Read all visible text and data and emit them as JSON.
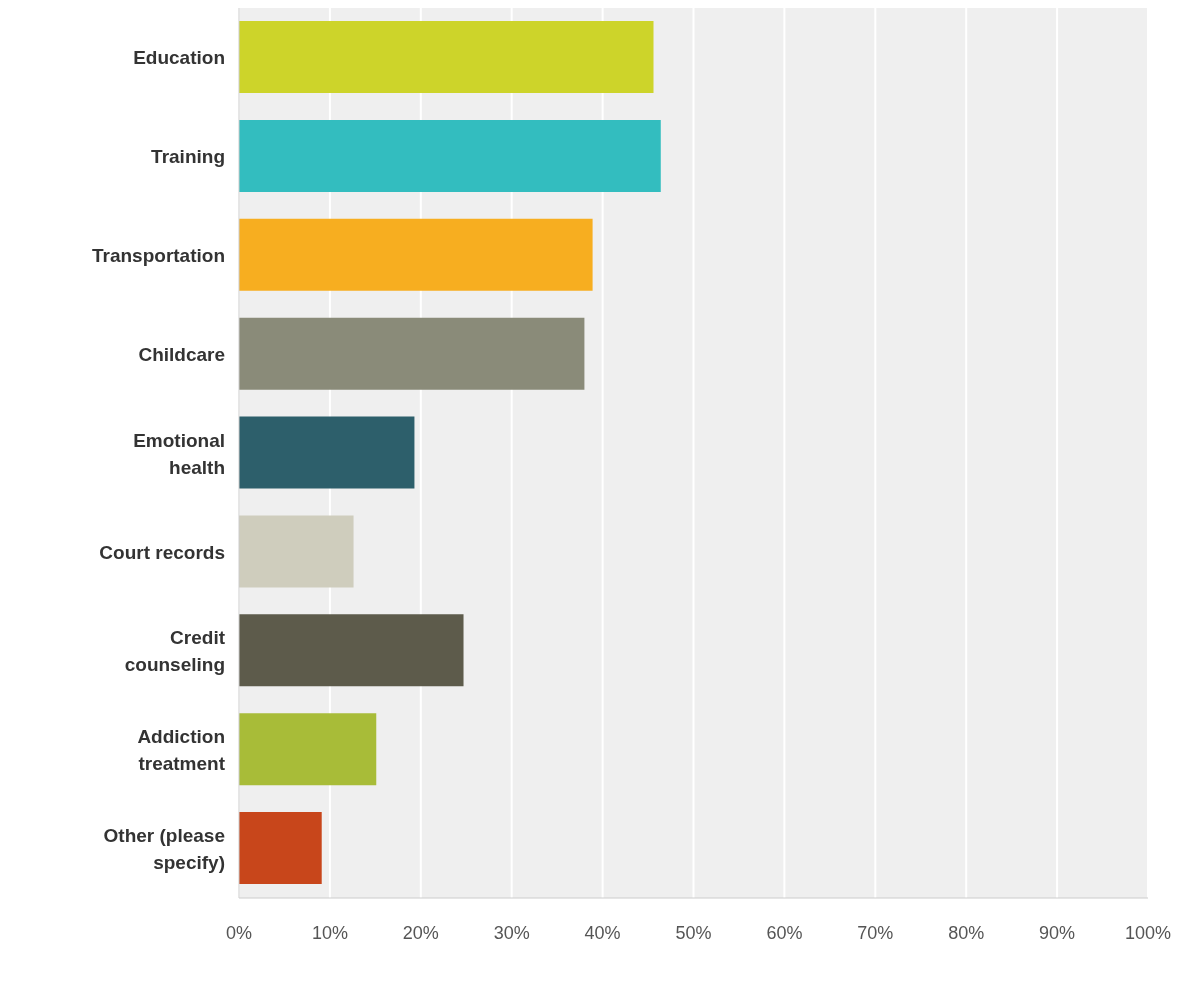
{
  "chart_data": {
    "type": "bar",
    "orientation": "horizontal",
    "categories": [
      "Education",
      "Training",
      "Transportation",
      "Childcare",
      "Emotional health",
      "Court records",
      "Credit counseling",
      "Addiction treatment",
      "Other (please specify)"
    ],
    "values": [
      45.6,
      46.4,
      38.9,
      38.0,
      19.3,
      12.6,
      24.7,
      15.1,
      9.1
    ],
    "colors": [
      "#cdd42a",
      "#33bdbf",
      "#f7ae20",
      "#8a8b79",
      "#2d5f6b",
      "#cfcdbd",
      "#5d5b4b",
      "#a8bc38",
      "#c8461b"
    ],
    "xlim": [
      0,
      100
    ],
    "xticks": [
      {
        "value": 0,
        "label": "0%"
      },
      {
        "value": 10,
        "label": "10%"
      },
      {
        "value": 20,
        "label": "20%"
      },
      {
        "value": 30,
        "label": "30%"
      },
      {
        "value": 40,
        "label": "40%"
      },
      {
        "value": 50,
        "label": "50%"
      },
      {
        "value": 60,
        "label": "60%"
      },
      {
        "value": 70,
        "label": "70%"
      },
      {
        "value": 80,
        "label": "80%"
      },
      {
        "value": 90,
        "label": "90%"
      },
      {
        "value": 100,
        "label": "100%"
      }
    ],
    "grid": "x"
  }
}
